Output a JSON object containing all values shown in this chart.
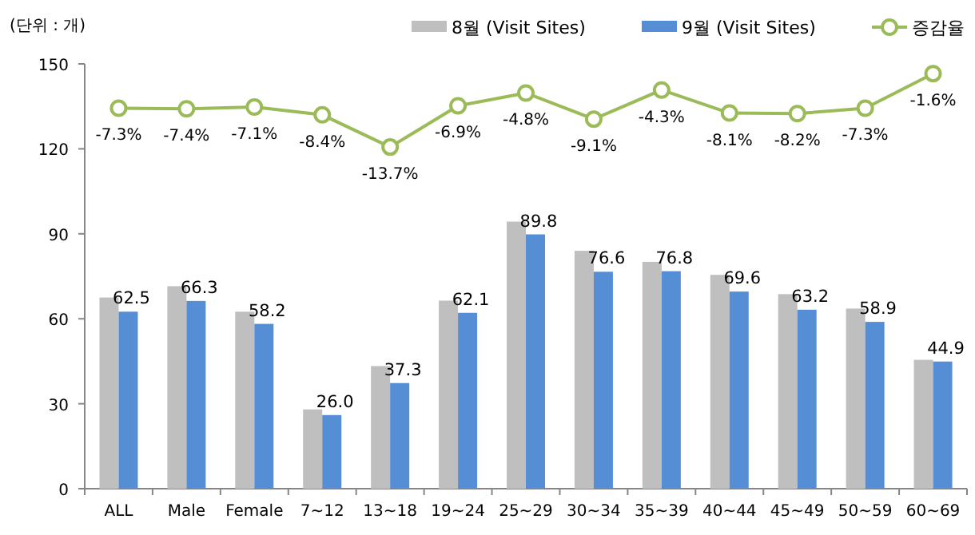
{
  "chart_data": {
    "type": "bar",
    "ylabel": "(단위 : 개)",
    "categories": [
      "ALL",
      "Male",
      "Female",
      "7~12",
      "13~18",
      "19~24",
      "25~29",
      "30~34",
      "35~39",
      "40~44",
      "45~49",
      "50~59",
      "60~69"
    ],
    "series": [
      {
        "name": "8월 (Visit Sites)",
        "color": "#bfbfbf",
        "values": [
          67.5,
          71.5,
          62.5,
          28,
          43.3,
          66.4,
          94.3,
          84,
          80.1,
          75.5,
          68.7,
          63.6,
          45.5
        ]
      },
      {
        "name": "9월 (Visit Sites)",
        "color": "#558ed5",
        "values": [
          62.5,
          66.3,
          58.2,
          26.0,
          37.3,
          62.1,
          89.8,
          76.6,
          76.8,
          69.6,
          63.2,
          58.9,
          44.9
        ],
        "value_labels": [
          "62.5",
          "66.3",
          "58.2",
          "26.0",
          "37.3",
          "62.1",
          "89.8",
          "76.6",
          "76.8",
          "69.6",
          "63.2",
          "58.9",
          "44.9"
        ]
      },
      {
        "name": "증감율",
        "type": "line",
        "axis": "y2",
        "color": "#9bbb59",
        "values": [
          -7.3,
          -7.4,
          -7.1,
          -8.4,
          -13.7,
          -6.9,
          -4.8,
          -9.1,
          -4.3,
          -8.1,
          -8.2,
          -7.3,
          -1.6
        ],
        "value_labels": [
          "-7.3%",
          "-7.4%",
          "-7.1%",
          "-8.4%",
          "-13.7%",
          "-6.9%",
          "-4.8%",
          "-9.1%",
          "-4.3%",
          "-8.1%",
          "-8.2%",
          "-7.3%",
          "-1.6%"
        ]
      }
    ],
    "ylim": [
      0,
      150
    ],
    "yticks": [
      0,
      30,
      60,
      90,
      120,
      150
    ],
    "y2lim": [
      -70,
      0
    ],
    "legend": "top right",
    "marker": "circle",
    "grid": false
  }
}
